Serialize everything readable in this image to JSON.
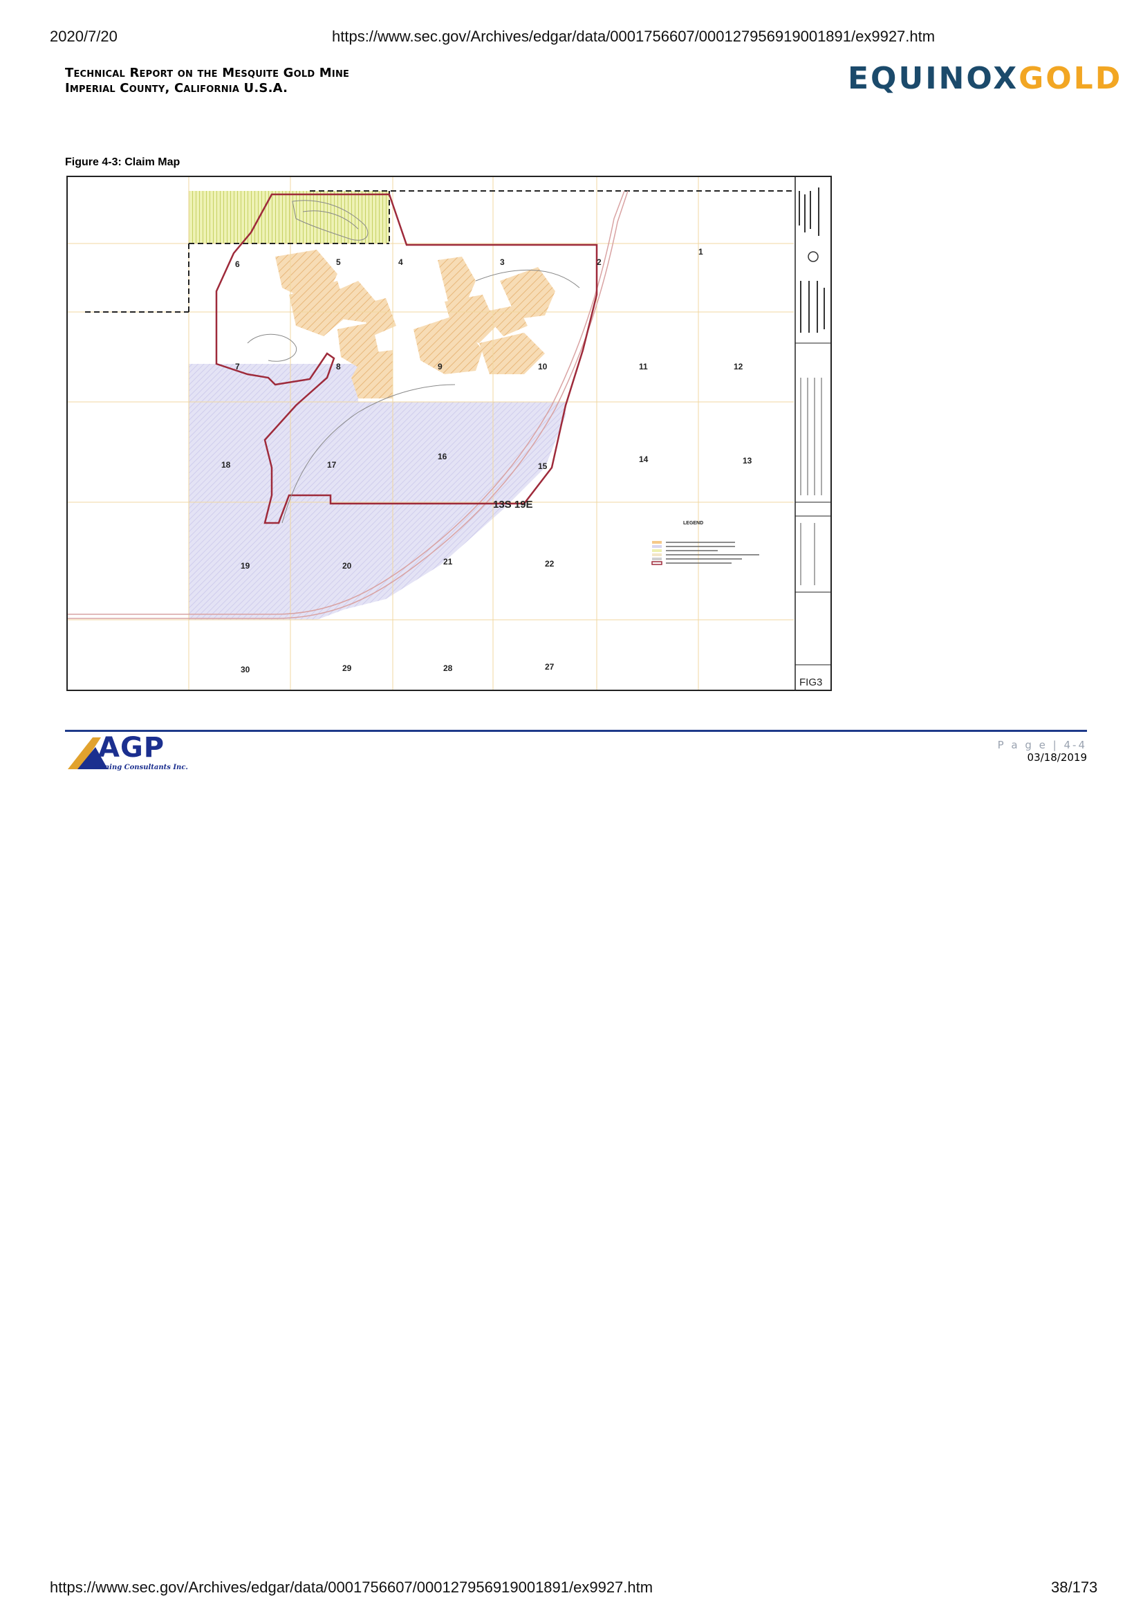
{
  "browser_header": {
    "date": "2020/7/20",
    "url": "https://www.sec.gov/Archives/edgar/data/0001756607/000127956919001891/ex9927.htm"
  },
  "report": {
    "title_line1": "Technical Report on the Mesquite Gold Mine",
    "title_line2": "Imperial County, California U.S.A."
  },
  "logo": {
    "part1": "EQUINOX",
    "part2": "GOLD",
    "color1": "#1b4a6b",
    "color2": "#f2a623"
  },
  "figure": {
    "caption": "Figure 4-3: Claim Map",
    "township_label": "13S 19E",
    "sheet_label": "FIG3",
    "legend_title": "LEGEND",
    "sections": [
      "1",
      "2",
      "3",
      "4",
      "5",
      "6",
      "7",
      "8",
      "9",
      "10",
      "11",
      "12",
      "13",
      "14",
      "15",
      "16",
      "17",
      "18",
      "19",
      "20",
      "21",
      "22",
      "27",
      "28",
      "29",
      "30"
    ]
  },
  "footer": {
    "agp_logo_text": "AGP",
    "agp_logo_subtext": "Mining Consultants Inc.",
    "page_label": "P a g e | 4-4",
    "date": "03/18/2019"
  },
  "browser_footer": {
    "url": "https://www.sec.gov/Archives/edgar/data/0001756607/000127956919001891/ex9927.htm",
    "page_count": "38/173"
  }
}
